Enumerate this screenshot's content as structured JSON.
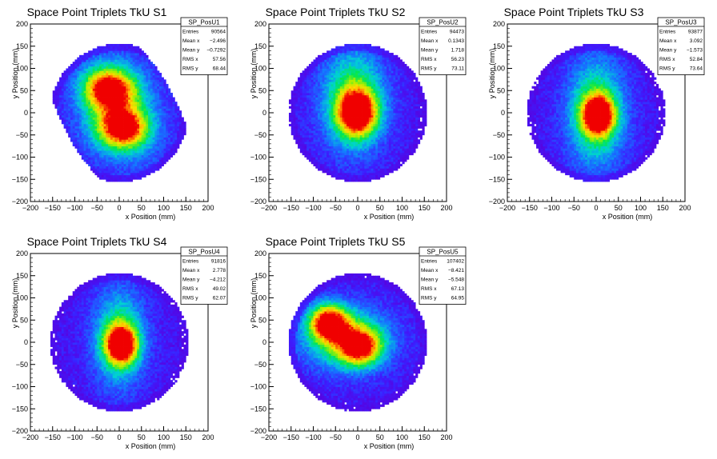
{
  "chart_data": [
    {
      "type": "heatmap",
      "title": "Space Point Triplets TkU S1",
      "xlabel": "x Position (mm)",
      "ylabel": "y Position (mm)",
      "xlim": [
        -200,
        200
      ],
      "ylim": [
        -200,
        200
      ],
      "x_ticks": [
        -200,
        -150,
        -100,
        -50,
        0,
        50,
        100,
        150,
        200
      ],
      "y_ticks": [
        -200,
        -150,
        -100,
        -50,
        0,
        50,
        100,
        150,
        200
      ],
      "stats": {
        "name": "SP_PosU1",
        "rows": [
          {
            "label": "Entries",
            "value": "90564"
          },
          {
            "label": "Mean x",
            "value": "−2.496"
          },
          {
            "label": "Mean y",
            "value": "−0.7292"
          },
          {
            "label": "RMS x",
            "value": "57.56"
          },
          {
            "label": "RMS y",
            "value": "68.44"
          }
        ]
      },
      "shape": "two_lobe",
      "hotspots": [
        {
          "x": -25,
          "y": 55,
          "sx": 38,
          "sy": 30,
          "amp": 1.0
        },
        {
          "x": 10,
          "y": -35,
          "sx": 38,
          "sy": 30,
          "amp": 0.95
        },
        {
          "x": -5,
          "y": 10,
          "sx": 55,
          "sy": 70,
          "amp": 0.55
        }
      ]
    },
    {
      "type": "heatmap",
      "title": "Space Point Triplets TkU S2",
      "xlabel": "x Position (mm)",
      "ylabel": "y Position (mm)",
      "xlim": [
        -200,
        200
      ],
      "ylim": [
        -200,
        200
      ],
      "x_ticks": [
        -200,
        -150,
        -100,
        -50,
        0,
        50,
        100,
        150,
        200
      ],
      "y_ticks": [
        -200,
        -150,
        -100,
        -50,
        0,
        50,
        100,
        150,
        200
      ],
      "stats": {
        "name": "SP_PosU2",
        "rows": [
          {
            "label": "Entries",
            "value": "94473"
          },
          {
            "label": "Mean x",
            "value": "0.1343"
          },
          {
            "label": "Mean y",
            "value": "1.718"
          },
          {
            "label": "RMS x",
            "value": "56.23"
          },
          {
            "label": "RMS y",
            "value": "73.11"
          }
        ]
      },
      "hotspots": [
        {
          "x": 0,
          "y": 0,
          "sx": 30,
          "sy": 35,
          "amp": 1.0
        },
        {
          "x": -10,
          "y": 30,
          "sx": 50,
          "sy": 80,
          "amp": 0.6
        }
      ]
    },
    {
      "type": "heatmap",
      "title": "Space Point Triplets TkU S3",
      "xlabel": "x Position (mm)",
      "ylabel": "y Position (mm)",
      "xlim": [
        -200,
        200
      ],
      "ylim": [
        -200,
        200
      ],
      "x_ticks": [
        -200,
        -150,
        -100,
        -50,
        0,
        50,
        100,
        150,
        200
      ],
      "y_ticks": [
        -200,
        -150,
        -100,
        -50,
        0,
        50,
        100,
        150,
        200
      ],
      "stats": {
        "name": "SP_PosU3",
        "rows": [
          {
            "label": "Entries",
            "value": "93877"
          },
          {
            "label": "Mean x",
            "value": "3.092"
          },
          {
            "label": "Mean y",
            "value": "−1.573"
          },
          {
            "label": "RMS x",
            "value": "52.84"
          },
          {
            "label": "RMS y",
            "value": "73.64"
          }
        ]
      },
      "hotspots": [
        {
          "x": 5,
          "y": -5,
          "sx": 25,
          "sy": 30,
          "amp": 1.0
        },
        {
          "x": 0,
          "y": 0,
          "sx": 45,
          "sy": 85,
          "amp": 0.6
        }
      ]
    },
    {
      "type": "heatmap",
      "title": "Space Point Triplets TkU S4",
      "xlabel": "x Position (mm)",
      "ylabel": "y Position (mm)",
      "xlim": [
        -200,
        200
      ],
      "ylim": [
        -200,
        200
      ],
      "x_ticks": [
        -200,
        -150,
        -100,
        -50,
        0,
        50,
        100,
        150,
        200
      ],
      "y_ticks": [
        -200,
        -150,
        -100,
        -50,
        0,
        50,
        100,
        150,
        200
      ],
      "stats": {
        "name": "SP_PosU4",
        "rows": [
          {
            "label": "Entries",
            "value": "91816"
          },
          {
            "label": "Mean x",
            "value": "2.778"
          },
          {
            "label": "Mean y",
            "value": "−4.212"
          },
          {
            "label": "RMS x",
            "value": "49.02"
          },
          {
            "label": "RMS y",
            "value": "62.07"
          }
        ]
      },
      "hotspots": [
        {
          "x": 5,
          "y": -5,
          "sx": 25,
          "sy": 30,
          "amp": 1.0
        },
        {
          "x": 0,
          "y": 10,
          "sx": 40,
          "sy": 75,
          "amp": 0.55
        }
      ]
    },
    {
      "type": "heatmap",
      "title": "Space Point Triplets TkU S5",
      "xlabel": "x Position (mm)",
      "ylabel": "y Position (mm)",
      "xlim": [
        -200,
        200
      ],
      "ylim": [
        -200,
        200
      ],
      "x_ticks": [
        -200,
        -150,
        -100,
        -50,
        0,
        50,
        100,
        150,
        200
      ],
      "y_ticks": [
        -200,
        -150,
        -100,
        -50,
        0,
        50,
        100,
        150,
        200
      ],
      "stats": {
        "name": "SP_PosU5",
        "rows": [
          {
            "label": "Entries",
            "value": "107402"
          },
          {
            "label": "Mean x",
            "value": "−8.421"
          },
          {
            "label": "Mean y",
            "value": "−5.548"
          },
          {
            "label": "RMS x",
            "value": "67.13"
          },
          {
            "label": "RMS y",
            "value": "64.95"
          }
        ]
      },
      "hotspots": [
        {
          "x": -65,
          "y": 45,
          "sx": 30,
          "sy": 28,
          "amp": 1.0
        },
        {
          "x": 5,
          "y": -10,
          "sx": 35,
          "sy": 30,
          "amp": 0.85
        },
        {
          "x": -30,
          "y": 10,
          "sx": 70,
          "sy": 50,
          "amp": 0.55
        }
      ]
    }
  ]
}
